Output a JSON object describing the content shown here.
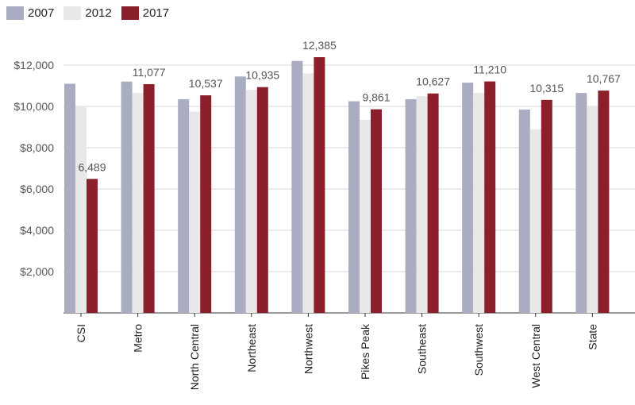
{
  "legend": [
    {
      "label": "2007",
      "color": "#aaadc1"
    },
    {
      "label": "2012",
      "color": "#e8e8e8"
    },
    {
      "label": "2017",
      "color": "#8b1f2c"
    }
  ],
  "chart_data": {
    "type": "bar",
    "categories": [
      "CSI",
      "Metro",
      "North Central",
      "Northeast",
      "Northwest",
      "Pikes Peak",
      "Southeast",
      "Southwest",
      "West Central",
      "State"
    ],
    "series": [
      {
        "name": "2007",
        "color": "#aaadc1",
        "values": [
          11100,
          11200,
          10350,
          11450,
          12200,
          10250,
          10350,
          11150,
          9850,
          10650
        ]
      },
      {
        "name": "2012",
        "color": "#e8e8e8",
        "values": [
          10000,
          10650,
          9750,
          10800,
          11600,
          9350,
          10500,
          10650,
          8900,
          10000
        ]
      },
      {
        "name": "2017",
        "color": "#8b1f2c",
        "values": [
          6489,
          11077,
          10537,
          10935,
          12385,
          9861,
          10627,
          11210,
          10315,
          10767
        ]
      }
    ],
    "data_labels": [
      "6,489",
      "11,077",
      "10,537",
      "10,935",
      "12,385",
      "9,861",
      "10,627",
      "11,210",
      "10,315",
      "10,767"
    ],
    "y_ticks": [
      "$2,000",
      "$4,000",
      "$6,000",
      "$8,000",
      "$10,000",
      "$12,000"
    ],
    "ylim": [
      0,
      13000
    ],
    "grid": "horizontal",
    "legend_position": "top-left"
  }
}
